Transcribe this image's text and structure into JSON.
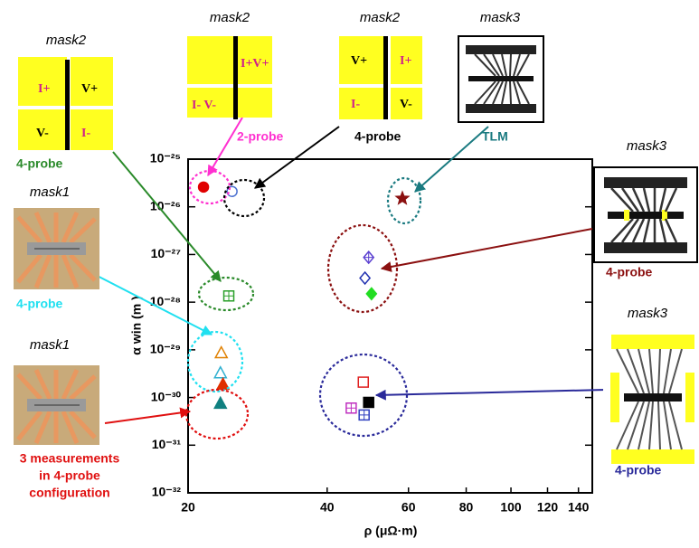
{
  "chart_data": {
    "type": "scatter",
    "xlabel": "ρ (μΩ·m)",
    "ylabel": "α win (m )",
    "log_x": true,
    "log_y": true,
    "xlim": [
      20,
      150
    ],
    "xticks": [
      20,
      40,
      60,
      80,
      100,
      120,
      140
    ],
    "ylim": [
      1e-32,
      1e-25
    ],
    "yticks": [
      {
        "value": 1e-32,
        "label": "10⁻³²"
      },
      {
        "value": 1e-31,
        "label": "10⁻³¹"
      },
      {
        "value": 1e-30,
        "label": "10⁻³⁰"
      },
      {
        "value": 1e-29,
        "label": "10⁻²⁹"
      },
      {
        "value": 1e-28,
        "label": "10⁻²⁸"
      },
      {
        "value": 1e-27,
        "label": "10⁻²⁷"
      },
      {
        "value": 1e-26,
        "label": "10⁻²⁶"
      },
      {
        "value": 1e-25,
        "label": "10⁻²⁵"
      }
    ],
    "series": [
      {
        "color": "#e00000",
        "marker": "circle-filled",
        "x": [
          21.6
        ],
        "values": [
          2.6e-26
        ]
      },
      {
        "color": "#4a6fd0",
        "marker": "circle-open",
        "x": [
          24.9
        ],
        "values": [
          2.1e-26
        ]
      },
      {
        "color": "#8b1010",
        "marker": "star",
        "x": [
          58.2
        ],
        "values": [
          1.5e-26
        ]
      },
      {
        "color": "#2aa02a",
        "marker": "square-cross",
        "x": [
          24.5
        ],
        "values": [
          1.35e-28
        ]
      },
      {
        "color": "#5a3fd0",
        "marker": "diamond-cross",
        "x": [
          49.2
        ],
        "values": [
          8.7e-28
        ]
      },
      {
        "color": "#2030b0",
        "marker": "diamond-open",
        "x": [
          48.3
        ],
        "values": [
          3.2e-28
        ]
      },
      {
        "color": "#22dd22",
        "marker": "diamond-filled",
        "x": [
          49.9
        ],
        "values": [
          1.5e-28
        ]
      },
      {
        "color": "#e08000",
        "marker": "triangle-open",
        "x": [
          23.6
        ],
        "values": [
          8.7e-30
        ]
      },
      {
        "color": "#30b0d0",
        "marker": "triangle-open",
        "x": [
          23.5
        ],
        "values": [
          3.3e-30
        ]
      },
      {
        "color": "#e03000",
        "marker": "triangle-filled",
        "x": [
          23.8
        ],
        "values": [
          1.9e-30
        ]
      },
      {
        "color": "#108080",
        "marker": "triangle-filled",
        "x": [
          23.5
        ],
        "values": [
          7.6e-31
        ]
      },
      {
        "color": "#e02020",
        "marker": "square-open",
        "x": [
          47.9
        ],
        "values": [
          2.1e-30
        ]
      },
      {
        "color": "#c030c0",
        "marker": "square-cross",
        "x": [
          45.1
        ],
        "values": [
          6e-31
        ]
      },
      {
        "color": "#000000",
        "marker": "square-filled",
        "x": [
          49.2
        ],
        "values": [
          7.9e-31
        ]
      },
      {
        "color": "#3040c0",
        "marker": "square-cross",
        "x": [
          48.1
        ],
        "values": [
          4.3e-31
        ]
      }
    ]
  },
  "panels": [
    {
      "title": "mask2",
      "labels": [
        "I+",
        "V+",
        "V-",
        "I-"
      ],
      "caption": [
        "4-probe"
      ]
    },
    {
      "title": "mask2",
      "labels": [
        "I+V+",
        "I- V-"
      ],
      "caption": [
        "2-probe"
      ]
    },
    {
      "title": "mask2",
      "labels": [
        "V+",
        "I+",
        "I-",
        "V-"
      ],
      "caption": [
        "4-probe"
      ]
    },
    {
      "title": "mask3",
      "caption": [
        "TLM"
      ]
    },
    {
      "title": "mask3",
      "caption": [
        "4-probe"
      ]
    },
    {
      "title": "mask3",
      "caption": [
        "4-probe"
      ]
    },
    {
      "title": "mask1",
      "caption": [
        "4-probe"
      ]
    },
    {
      "title": "mask1",
      "caption": [
        "3 measurements",
        "in 4-probe",
        "configuration"
      ]
    }
  ]
}
